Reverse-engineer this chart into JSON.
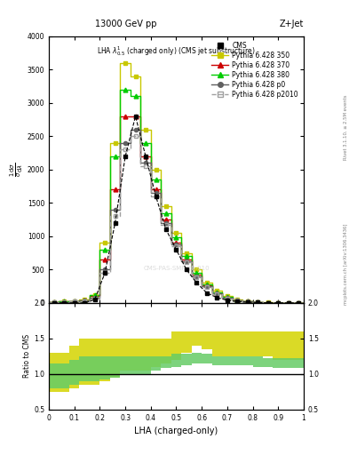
{
  "title_top": "13000 GeV pp",
  "title_right": "Z+Jet",
  "plot_title": "LHA $\\lambda^1_{0.5}$ (charged only) (CMS jet substructure)",
  "xlabel": "LHA (charged-only)",
  "ylabel_main": "$\\frac{1}{\\sigma}\\frac{\\mathrm{d}\\sigma}{\\mathrm{d}\\lambda}$",
  "ylabel_ratio": "Ratio to CMS",
  "right_label1": "Rivet 3.1.10, ≥ 2.5M events",
  "right_label2": "mcplots.cern.ch [arXiv:1306.3436]",
  "watermark": "CMS-PAS-SMP-20-010",
  "xbins": [
    0.0,
    0.04,
    0.08,
    0.12,
    0.16,
    0.2,
    0.24,
    0.28,
    0.32,
    0.36,
    0.4,
    0.44,
    0.48,
    0.52,
    0.56,
    0.6,
    0.64,
    0.68,
    0.72,
    0.76,
    0.8,
    0.84,
    0.88,
    0.92,
    0.96,
    1.0
  ],
  "cms_data": [
    0,
    0,
    0,
    0,
    50,
    450,
    1200,
    2200,
    2800,
    2200,
    1600,
    1100,
    800,
    500,
    300,
    150,
    80,
    40,
    20,
    10,
    5,
    2,
    1,
    0,
    0
  ],
  "p350_data": [
    10,
    20,
    30,
    50,
    120,
    900,
    2400,
    3600,
    3400,
    2600,
    2000,
    1450,
    1050,
    750,
    500,
    300,
    180,
    100,
    50,
    25,
    12,
    5,
    2,
    1,
    0
  ],
  "p370_data": [
    10,
    20,
    25,
    40,
    100,
    650,
    1700,
    2800,
    2800,
    2200,
    1700,
    1250,
    900,
    650,
    420,
    260,
    150,
    80,
    40,
    20,
    10,
    4,
    2,
    0,
    0
  ],
  "p380_data": [
    10,
    20,
    25,
    40,
    120,
    800,
    2200,
    3200,
    3100,
    2400,
    1850,
    1350,
    980,
    700,
    450,
    280,
    160,
    85,
    42,
    21,
    10,
    4,
    2,
    1,
    0
  ],
  "p0_data": [
    10,
    15,
    20,
    35,
    80,
    500,
    1400,
    2400,
    2600,
    2100,
    1650,
    1200,
    880,
    630,
    400,
    250,
    140,
    75,
    38,
    18,
    9,
    3,
    1,
    0,
    0
  ],
  "p2010_data": [
    10,
    15,
    20,
    30,
    70,
    450,
    1300,
    2300,
    2500,
    2050,
    1600,
    1170,
    850,
    610,
    385,
    235,
    135,
    70,
    35,
    16,
    8,
    3,
    1,
    0,
    0
  ],
  "ratio_p350_lo": [
    0.75,
    0.75,
    0.8,
    0.85,
    0.85,
    0.9,
    0.95,
    1.05,
    1.05,
    1.05,
    1.1,
    1.15,
    1.2,
    1.3,
    1.4,
    1.35,
    1.25,
    1.25,
    1.25,
    1.25,
    1.25,
    1.25,
    1.2,
    1.2,
    1.2
  ],
  "ratio_p350_hi": [
    1.3,
    1.3,
    1.4,
    1.5,
    1.5,
    1.5,
    1.5,
    1.5,
    1.5,
    1.5,
    1.5,
    1.5,
    1.6,
    1.6,
    1.6,
    1.6,
    1.6,
    1.6,
    1.6,
    1.6,
    1.6,
    1.6,
    1.6,
    1.6,
    1.6
  ],
  "ratio_p380_lo": [
    0.8,
    0.8,
    0.85,
    0.9,
    0.9,
    0.92,
    0.95,
    1.0,
    1.0,
    1.0,
    1.05,
    1.08,
    1.1,
    1.12,
    1.15,
    1.15,
    1.12,
    1.12,
    1.12,
    1.12,
    1.1,
    1.1,
    1.08,
    1.08,
    1.08
  ],
  "ratio_p380_hi": [
    1.15,
    1.15,
    1.2,
    1.25,
    1.25,
    1.25,
    1.25,
    1.25,
    1.25,
    1.25,
    1.25,
    1.25,
    1.28,
    1.28,
    1.3,
    1.28,
    1.25,
    1.25,
    1.25,
    1.25,
    1.25,
    1.22,
    1.22,
    1.22,
    1.22
  ],
  "color_p350": "#c8c800",
  "color_p370": "#cc0000",
  "color_p380": "#00cc00",
  "color_p0": "#606060",
  "color_p2010": "#a0a0a0",
  "color_cms": "#000000",
  "color_band_yellow": "#d4d400",
  "color_band_green": "#66cc66",
  "ylim_main": [
    0,
    4000
  ],
  "ylim_ratio": [
    0.5,
    2.0
  ],
  "yticks_main": [
    0,
    500,
    1000,
    1500,
    2000,
    2500,
    3000,
    3500,
    4000
  ],
  "yticks_ratio": [
    0.5,
    1.0,
    1.5,
    2.0
  ],
  "background_color": "#ffffff"
}
